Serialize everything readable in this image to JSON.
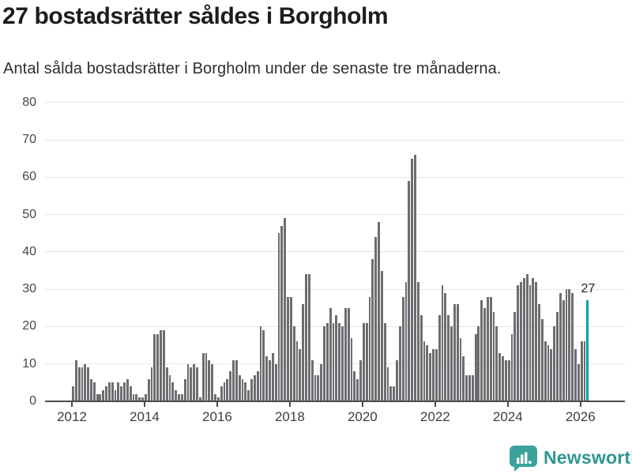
{
  "header": {
    "title": "27 bostadsrätter såldes i Borgholm",
    "subtitle": "Antal sålda bostadsrätter i Borgholm under de senaste tre månaderna."
  },
  "chart_data": {
    "type": "bar",
    "title": "27 bostadsrätter såldes i Borgholm",
    "ylabel": "",
    "xlabel": "",
    "ylim": [
      0,
      80
    ],
    "yticks": [
      0,
      10,
      20,
      30,
      40,
      50,
      60,
      70,
      80
    ],
    "xticks": [
      "2012",
      "2014",
      "2016",
      "2018",
      "2020",
      "2022",
      "2024",
      "2026"
    ],
    "grid": "horizontal",
    "legend": "none",
    "series_note": "monthly bars, rolling 3-month sales counts, Jan 2012 - spring 2026",
    "values": [
      4,
      11,
      9,
      9,
      10,
      9,
      6,
      5,
      2,
      2,
      3,
      4,
      5,
      5,
      3,
      5,
      4,
      5,
      6,
      4,
      2,
      2,
      1,
      1,
      2,
      6,
      9,
      18,
      18,
      19,
      19,
      9,
      7,
      5,
      3,
      2,
      2,
      6,
      10,
      9,
      10,
      9,
      1,
      13,
      13,
      11,
      10,
      2,
      1,
      4,
      5,
      6,
      8,
      11,
      11,
      7,
      6,
      5,
      3,
      6,
      7,
      8,
      20,
      19,
      12,
      11,
      13,
      10,
      45,
      47,
      49,
      28,
      28,
      20,
      16,
      14,
      26,
      34,
      34,
      11,
      7,
      7,
      10,
      20,
      21,
      25,
      21,
      23,
      21,
      20,
      25,
      25,
      17,
      8,
      6,
      11,
      21,
      21,
      28,
      38,
      44,
      48,
      35,
      21,
      9,
      4,
      4,
      11,
      20,
      28,
      32,
      59,
      65,
      66,
      32,
      23,
      16,
      15,
      13,
      14,
      14,
      23,
      31,
      29,
      23,
      20,
      26,
      26,
      17,
      12,
      7,
      7,
      7,
      18,
      20,
      27,
      25,
      28,
      28,
      24,
      20,
      13,
      12,
      11,
      11,
      18,
      24,
      31,
      32,
      33,
      34,
      31,
      33,
      32,
      26,
      22,
      16,
      15,
      14,
      20,
      24,
      29,
      27,
      30,
      30,
      29,
      14,
      10,
      16,
      16,
      27
    ],
    "highlight_last": true,
    "annotation": "27",
    "colors": {
      "bar": "#6d6d71",
      "highlight": "#00a1a5",
      "grid": "#e7e7e7",
      "axis": "#4c4c4c"
    }
  },
  "footer": {
    "brand": "Newsworthy",
    "brand_color": "#2f968f",
    "icon_color": "#3ba39c"
  }
}
